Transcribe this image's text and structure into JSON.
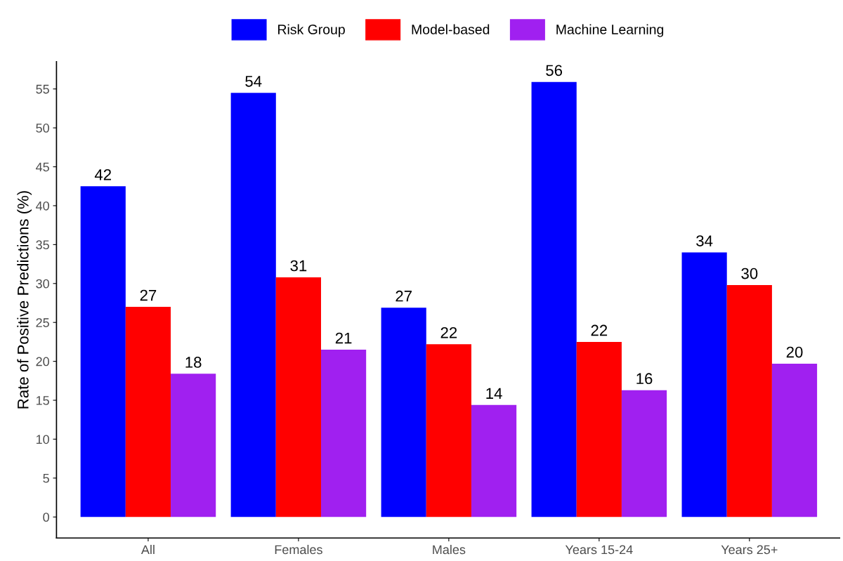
{
  "chart_data": {
    "type": "bar",
    "ylabel": "Rate of Positive Predictions (%)",
    "categories": [
      "All",
      "Females",
      "Males",
      "Years 15-24",
      "Years 25+"
    ],
    "series": [
      {
        "name": "Risk Group",
        "color": "#0000ff",
        "values": [
          42.5,
          54.5,
          26.9,
          55.9,
          34.0
        ],
        "value_labels": [
          "42",
          "54",
          "27",
          "56",
          "34"
        ]
      },
      {
        "name": "Model-based",
        "color": "#ff0000",
        "values": [
          27.0,
          30.8,
          22.2,
          22.5,
          29.8
        ],
        "value_labels": [
          "27",
          "31",
          "22",
          "22",
          "30"
        ]
      },
      {
        "name": "Machine Learning",
        "color": "#a020f0",
        "values": [
          18.4,
          21.5,
          14.4,
          16.3,
          19.7
        ],
        "value_labels": [
          "18",
          "21",
          "14",
          "16",
          "20"
        ]
      }
    ],
    "ylim": [
      -2.7,
      58.5
    ],
    "yticks": [
      0,
      5,
      10,
      15,
      20,
      25,
      30,
      35,
      40,
      45,
      50,
      55
    ],
    "grid": false,
    "legend": "top"
  }
}
